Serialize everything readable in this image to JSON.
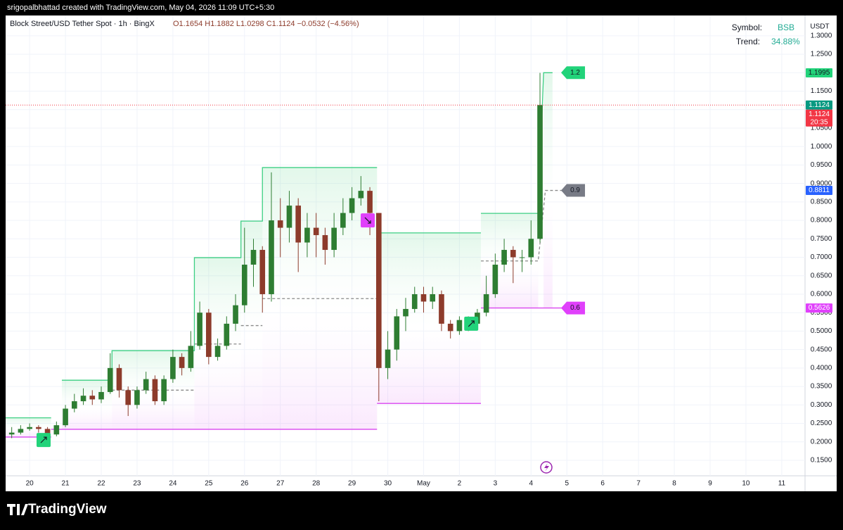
{
  "header": {
    "credit": "srigopalbhattad created with TradingView.com, May 04, 2026 11:09 UTC+5:30",
    "title": "Block Street/USD Tether Spot · 1h · BingX",
    "ohlc": "O1.1654 H1.1882 L1.0298 C1.1124 −0.0532 (−4.56%)"
  },
  "info": {
    "symbol_label": "Symbol:",
    "symbol": "BSB",
    "trend_label": "Trend:",
    "trend": "34.88%"
  },
  "footer": {
    "brand": "TradingView"
  },
  "chart_data": {
    "type": "candlestick",
    "y_axis_label": "USDT",
    "grid": true,
    "up_color": "#2e7d32",
    "down_color": "#8d3b2b",
    "x": [
      -0.5,
      -0.25,
      0,
      0.25,
      0.5,
      0.75,
      1,
      1.25,
      1.5,
      1.75,
      2,
      2.25,
      2.5,
      2.75,
      3,
      3.25,
      3.5,
      3.75,
      4,
      4.25,
      4.5,
      4.75,
      5,
      5.25,
      5.5,
      5.75,
      6,
      6.25,
      6.5,
      6.75,
      7,
      7.25,
      7.5,
      7.75,
      8,
      8.25,
      8.5,
      8.75,
      9,
      9.25,
      9.5,
      9.75,
      10,
      10.25,
      10.5,
      10.75,
      11,
      11.25,
      11.5,
      11.75,
      12,
      12.25,
      12.5,
      12.75,
      13,
      13.25,
      13.5,
      13.75,
      14,
      14.25
    ],
    "open": [
      0.22,
      0.225,
      0.235,
      0.24,
      0.235,
      0.22,
      0.245,
      0.29,
      0.31,
      0.325,
      0.315,
      0.335,
      0.4,
      0.34,
      0.3,
      0.34,
      0.37,
      0.31,
      0.37,
      0.43,
      0.4,
      0.46,
      0.55,
      0.43,
      0.46,
      0.52,
      0.57,
      0.68,
      0.72,
      0.6,
      0.8,
      0.78,
      0.84,
      0.74,
      0.78,
      0.76,
      0.72,
      0.78,
      0.82,
      0.86,
      0.88,
      0.82,
      0.4,
      0.45,
      0.54,
      0.56,
      0.6,
      0.58,
      0.6,
      0.52,
      0.5,
      0.53,
      0.52,
      0.55,
      0.6,
      0.68,
      0.72,
      0.7,
      0.7,
      0.75
    ],
    "high": [
      0.24,
      0.245,
      0.25,
      0.245,
      0.24,
      0.255,
      0.3,
      0.33,
      0.345,
      0.34,
      0.35,
      0.44,
      0.41,
      0.35,
      0.35,
      0.39,
      0.38,
      0.38,
      0.45,
      0.44,
      0.5,
      0.58,
      0.56,
      0.48,
      0.54,
      0.6,
      0.78,
      0.75,
      0.73,
      0.93,
      0.86,
      0.88,
      0.86,
      0.82,
      0.82,
      0.78,
      0.82,
      0.86,
      0.89,
      0.92,
      0.89,
      0.82,
      0.5,
      0.56,
      0.59,
      0.62,
      0.62,
      0.62,
      0.61,
      0.53,
      0.54,
      0.54,
      0.56,
      0.65,
      0.71,
      0.75,
      0.73,
      0.72,
      0.8,
      1.1995
    ],
    "low": [
      0.21,
      0.22,
      0.23,
      0.225,
      0.205,
      0.215,
      0.24,
      0.28,
      0.3,
      0.3,
      0.305,
      0.33,
      0.32,
      0.27,
      0.29,
      0.33,
      0.3,
      0.3,
      0.36,
      0.38,
      0.39,
      0.45,
      0.41,
      0.42,
      0.45,
      0.5,
      0.55,
      0.62,
      0.55,
      0.58,
      0.7,
      0.74,
      0.66,
      0.7,
      0.7,
      0.68,
      0.7,
      0.76,
      0.8,
      0.84,
      0.76,
      0.31,
      0.37,
      0.42,
      0.5,
      0.55,
      0.55,
      0.56,
      0.5,
      0.48,
      0.49,
      0.5,
      0.51,
      0.54,
      0.59,
      0.66,
      0.63,
      0.66,
      0.68,
      0.74
    ],
    "close": [
      0.225,
      0.235,
      0.24,
      0.235,
      0.22,
      0.245,
      0.29,
      0.31,
      0.325,
      0.315,
      0.335,
      0.4,
      0.34,
      0.3,
      0.34,
      0.37,
      0.31,
      0.37,
      0.43,
      0.4,
      0.46,
      0.55,
      0.43,
      0.46,
      0.52,
      0.57,
      0.68,
      0.72,
      0.6,
      0.8,
      0.78,
      0.84,
      0.74,
      0.78,
      0.76,
      0.72,
      0.78,
      0.82,
      0.86,
      0.88,
      0.82,
      0.4,
      0.45,
      0.54,
      0.56,
      0.6,
      0.58,
      0.6,
      0.52,
      0.5,
      0.53,
      0.52,
      0.55,
      0.6,
      0.68,
      0.72,
      0.7,
      0.7,
      0.75,
      1.1124
    ],
    "xlim": [
      -0.67,
      21.65
    ],
    "ylim": [
      0.108,
      1.355
    ],
    "xticks": [
      {
        "value": 0,
        "label": "20"
      },
      {
        "value": 1,
        "label": "21"
      },
      {
        "value": 2,
        "label": "22"
      },
      {
        "value": 3,
        "label": "23"
      },
      {
        "value": 4,
        "label": "24"
      },
      {
        "value": 5,
        "label": "25"
      },
      {
        "value": 6,
        "label": "26"
      },
      {
        "value": 7,
        "label": "27"
      },
      {
        "value": 8,
        "label": "28"
      },
      {
        "value": 9,
        "label": "29"
      },
      {
        "value": 10,
        "label": "30"
      },
      {
        "value": 11,
        "label": "May"
      },
      {
        "value": 12,
        "label": "2"
      },
      {
        "value": 13,
        "label": "3"
      },
      {
        "value": 14,
        "label": "4"
      },
      {
        "value": 15,
        "label": "5"
      },
      {
        "value": 16,
        "label": "6"
      },
      {
        "value": 17,
        "label": "7"
      },
      {
        "value": 18,
        "label": "8"
      },
      {
        "value": 19,
        "label": "9"
      },
      {
        "value": 20,
        "label": "10"
      },
      {
        "value": 21,
        "label": "11"
      }
    ],
    "yticks": [
      {
        "value": 0.15,
        "label": "0.1500"
      },
      {
        "value": 0.2,
        "label": "0.2000"
      },
      {
        "value": 0.25,
        "label": "0.2500"
      },
      {
        "value": 0.3,
        "label": "0.3000"
      },
      {
        "value": 0.35,
        "label": "0.3500"
      },
      {
        "value": 0.4,
        "label": "0.4000"
      },
      {
        "value": 0.45,
        "label": "0.4500"
      },
      {
        "value": 0.5,
        "label": "0.5000"
      },
      {
        "value": 0.55,
        "label": "0.5500"
      },
      {
        "value": 0.6,
        "label": "0.6000"
      },
      {
        "value": 0.65,
        "label": "0.6500"
      },
      {
        "value": 0.7,
        "label": "0.7000"
      },
      {
        "value": 0.75,
        "label": "0.7500"
      },
      {
        "value": 0.8,
        "label": "0.8000"
      },
      {
        "value": 0.85,
        "label": "0.8500"
      },
      {
        "value": 0.9,
        "label": "0.9000"
      },
      {
        "value": 0.95,
        "label": "0.9500"
      },
      {
        "value": 1.0,
        "label": "1.0000"
      },
      {
        "value": 1.05,
        "label": "1.0500"
      },
      {
        "value": 1.1,
        "label": "1.1000"
      },
      {
        "value": 1.15,
        "label": "1.1500"
      },
      {
        "value": 1.2,
        "label": "1.2000"
      },
      {
        "value": 1.25,
        "label": "1.2500"
      },
      {
        "value": 1.3,
        "label": "1.3000"
      }
    ],
    "levels": [
      {
        "color": "#3ccf83",
        "dashed": false,
        "x": [
          -0.67,
          0.6,
          null,
          0.9,
          2.3,
          2.3,
          4.6,
          4.6,
          5.9,
          5.9,
          6.5,
          6.5,
          9.7,
          null,
          9.7,
          12.6,
          null,
          12.6,
          14.2,
          14.35,
          14.6
        ],
        "values": [
          0.265,
          0.265,
          null,
          0.367,
          0.367,
          0.447,
          0.447,
          0.699,
          0.699,
          0.798,
          0.798,
          0.943,
          0.943,
          null,
          0.766,
          0.766,
          null,
          0.819,
          0.819,
          1.2,
          1.2
        ]
      },
      {
        "color": "#d946ef",
        "dashed": false,
        "x": [
          -0.67,
          0.6,
          null,
          0.6,
          9.7,
          null,
          9.7,
          12.6,
          null,
          12.6,
          14.4,
          14.95
        ],
        "values": [
          0.213,
          0.213,
          null,
          0.234,
          0.234,
          null,
          0.304,
          0.304,
          null,
          0.5626,
          0.5626,
          0.5626
        ]
      },
      {
        "color": "#8a8a8a",
        "dashed": true,
        "x": [
          2.3,
          4.6,
          null,
          4.6,
          5.9,
          null,
          5.9,
          6.5,
          null,
          6.5,
          9.7,
          null,
          12.6,
          14.2,
          14.4,
          14.9
        ],
        "values": [
          0.34,
          0.34,
          null,
          0.465,
          0.465,
          null,
          0.515,
          0.515,
          null,
          0.588,
          0.588,
          null,
          0.69,
          0.69,
          0.8811,
          0.8811
        ]
      }
    ],
    "signals": [
      {
        "x": 0.39,
        "y": 0.205,
        "direction": "up",
        "color": "#22d37a"
      },
      {
        "x": 9.44,
        "y": 0.8,
        "direction": "down",
        "color": "#e040fb"
      },
      {
        "x": 12.33,
        "y": 0.52,
        "direction": "up",
        "color": "#22d37a"
      }
    ],
    "level_labels": [
      {
        "label": "1.2",
        "price": 1.2,
        "color": "#22d37a"
      },
      {
        "label": "0.9",
        "price": 0.8811,
        "color": "#787b86"
      },
      {
        "label": "0.6",
        "price": 0.5626,
        "color": "#e040fb"
      }
    ],
    "price_tags": [
      {
        "value": 1.1995,
        "color": "#22d37a"
      },
      {
        "value": 1.1124,
        "color": "#089981"
      },
      {
        "value": 1.1124,
        "color": "#f23645",
        "countdown": "20:35"
      },
      {
        "value": 0.8811,
        "color": "#2962ff"
      },
      {
        "value": 0.5626,
        "color": "#e040fb"
      }
    ]
  }
}
